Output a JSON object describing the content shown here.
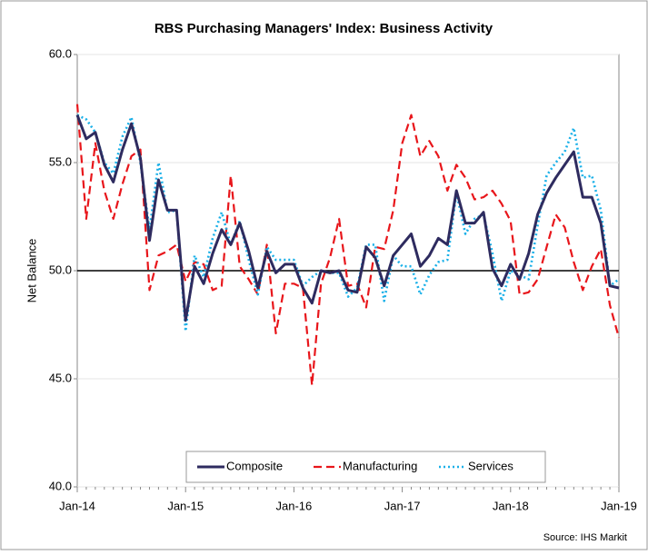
{
  "chart_data": {
    "type": "line",
    "title": "RBS Purchasing Managers' Index: Business Activity",
    "y_label": "Net Balance",
    "source": "Source: IHS Markit",
    "categories": [
      "Jan-14",
      null,
      null,
      null,
      null,
      null,
      null,
      null,
      null,
      null,
      null,
      null,
      "Jan-15",
      null,
      null,
      null,
      null,
      null,
      null,
      null,
      null,
      null,
      null,
      null,
      "Jan-16",
      null,
      null,
      null,
      null,
      null,
      null,
      null,
      null,
      null,
      null,
      null,
      "Jan-17",
      null,
      null,
      null,
      null,
      null,
      null,
      null,
      null,
      null,
      null,
      null,
      "Jan-18",
      null,
      null,
      null,
      null,
      null,
      null,
      null,
      null,
      null,
      null,
      null,
      "Jan-19"
    ],
    "series": [
      {
        "name": "Composite",
        "color": "#2e2b5f",
        "style": "solid",
        "values": [
          57.2,
          56.1,
          56.4,
          54.9,
          54.1,
          55.6,
          56.8,
          55.2,
          51.4,
          54.2,
          52.8,
          52.8,
          47.7,
          50.2,
          49.4,
          50.8,
          51.9,
          51.2,
          52.2,
          50.9,
          49.2,
          50.9,
          49.9,
          50.3,
          50.3,
          49.2,
          48.5,
          50.0,
          49.9,
          50.0,
          49.1,
          49.0,
          51.1,
          50.6,
          49.3,
          50.7,
          51.2,
          51.7,
          50.2,
          50.7,
          51.5,
          51.2,
          53.7,
          52.2,
          52.2,
          52.7,
          50.1,
          49.3,
          50.3,
          49.6,
          50.8,
          52.6,
          53.6,
          54.3,
          54.9,
          55.5,
          53.4,
          53.4,
          52.2,
          49.3,
          49.2
        ]
      },
      {
        "name": "Manufacturing",
        "color": "#e8161b",
        "style": "dashed",
        "values": [
          57.7,
          52.4,
          55.9,
          53.7,
          52.4,
          54.0,
          55.3,
          55.6,
          49.1,
          50.7,
          50.9,
          51.2,
          49.5,
          50.4,
          50.3,
          49.1,
          49.3,
          54.4,
          50.2,
          49.6,
          48.9,
          51.2,
          47.1,
          49.4,
          49.4,
          49.2,
          44.7,
          49.4,
          50.6,
          52.4,
          49.3,
          49.4,
          48.3,
          51.1,
          51.0,
          52.8,
          55.9,
          57.2,
          55.3,
          56.0,
          55.3,
          53.7,
          54.9,
          54.3,
          53.3,
          53.4,
          53.7,
          53.1,
          52.3,
          48.9,
          49.0,
          49.6,
          51.1,
          52.6,
          52.0,
          50.4,
          49.1,
          50.2,
          51.0,
          48.4,
          46.9
        ]
      },
      {
        "name": "Services",
        "color": "#1ab0e8",
        "style": "dotted",
        "values": [
          57.2,
          57.0,
          56.4,
          55.0,
          54.5,
          56.2,
          57.1,
          55.0,
          51.9,
          55.0,
          52.7,
          52.8,
          47.2,
          50.7,
          49.7,
          51.5,
          52.7,
          51.2,
          52.3,
          50.5,
          48.9,
          51.1,
          50.5,
          50.5,
          50.5,
          49.3,
          49.7,
          50.0,
          49.9,
          49.9,
          48.8,
          49.2,
          51.2,
          51.2,
          48.6,
          50.7,
          50.2,
          50.2,
          48.9,
          49.8,
          50.4,
          50.5,
          53.6,
          51.7,
          52.4,
          52.6,
          50.8,
          48.6,
          50.0,
          49.8,
          49.6,
          52.1,
          54.4,
          55.0,
          55.5,
          56.6,
          54.3,
          54.4,
          52.8,
          49.3,
          49.6
        ]
      }
    ],
    "reference_line": 50,
    "ylim": [
      40,
      60
    ],
    "yticks": [
      {
        "value": 40,
        "label": "40.0"
      },
      {
        "value": 45,
        "label": "45.0"
      },
      {
        "value": 50,
        "label": "50.0"
      },
      {
        "value": 55,
        "label": "55.0"
      },
      {
        "value": 60,
        "label": "60.0"
      }
    ],
    "grid": true,
    "legend": "bottom"
  }
}
